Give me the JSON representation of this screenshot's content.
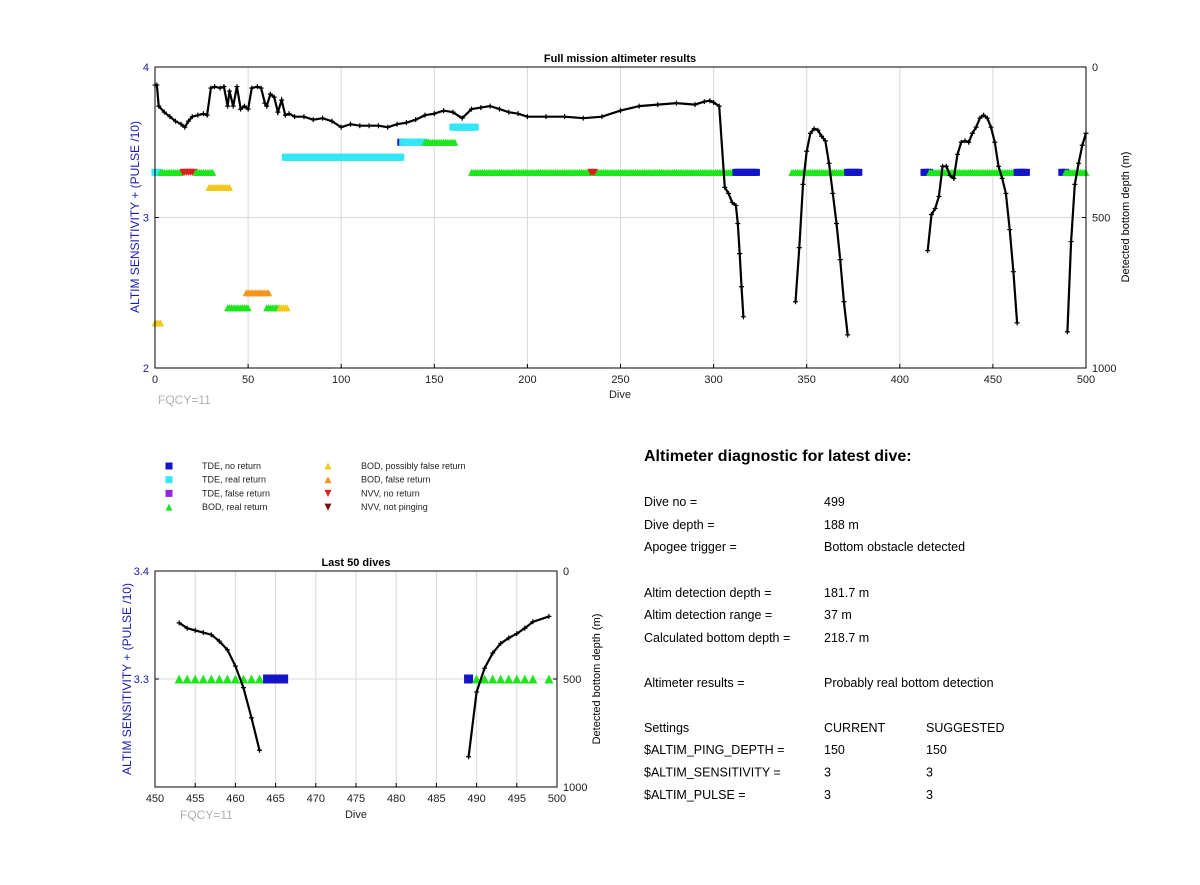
{
  "chart_data": [
    {
      "type": "scatter",
      "title": "Full mission altimeter results",
      "xlabel": "Dive",
      "ylabel": "ALTIM SENSITIVITY + (PULSE /10)",
      "y2label": "Detected bottom depth (m)",
      "xlim": [
        0,
        500
      ],
      "ylim": [
        2,
        4
      ],
      "y2lim": [
        1000,
        0
      ],
      "xticks": [
        0,
        50,
        100,
        150,
        200,
        250,
        300,
        350,
        400,
        450,
        500
      ],
      "yticks": [
        2,
        3,
        4
      ],
      "y2ticks": [
        0,
        500,
        1000
      ],
      "grid": true,
      "annotation": "FQCY=11",
      "markers": [
        {
          "category": "TDE, real return",
          "dive_start": 0,
          "dive_end": 2,
          "y": 3.3
        },
        {
          "category": "BOD, real return",
          "dive_start": 3,
          "dive_end": 14,
          "y": 3.3
        },
        {
          "category": "NVV, no return",
          "dive_start": 15,
          "dive_end": 21,
          "y": 3.3
        },
        {
          "category": "BOD, real return",
          "dive_start": 22,
          "dive_end": 31,
          "y": 3.3
        },
        {
          "category": "BOD, possibly false return",
          "dive_start": 29,
          "dive_end": 40,
          "y": 3.2
        },
        {
          "category": "BOD, possibly false return",
          "dive_start": 0,
          "dive_end": 3,
          "y": 2.3
        },
        {
          "category": "BOD, false return",
          "dive_start": 49,
          "dive_end": 61,
          "y": 2.5
        },
        {
          "category": "BOD, real return",
          "dive_start": 39,
          "dive_end": 50,
          "y": 2.4
        },
        {
          "category": "BOD, real return",
          "dive_start": 60,
          "dive_end": 67,
          "y": 2.4
        },
        {
          "category": "BOD, possibly false return",
          "dive_start": 67,
          "dive_end": 71,
          "y": 2.4
        },
        {
          "category": "TDE, real return",
          "dive_start": 70,
          "dive_end": 132,
          "y": 3.4
        },
        {
          "category": "TDE, no return",
          "dive_start": 132,
          "dive_end": 133,
          "y": 3.5
        },
        {
          "category": "TDE, real return",
          "dive_start": 133,
          "dive_end": 145,
          "y": 3.5
        },
        {
          "category": "BOD, real return",
          "dive_start": 145,
          "dive_end": 161,
          "y": 3.5
        },
        {
          "category": "TDE, real return",
          "dive_start": 160,
          "dive_end": 172,
          "y": 3.6
        },
        {
          "category": "BOD, real return",
          "dive_start": 170,
          "dive_end": 312,
          "y": 3.3
        },
        {
          "category": "NVV, no return",
          "dive_start": 234,
          "dive_end": 236,
          "y": 3.3
        },
        {
          "category": "TDE, no return",
          "dive_start": 312,
          "dive_end": 323,
          "y": 3.3
        },
        {
          "category": "BOD, real return",
          "dive_start": 342,
          "dive_end": 372,
          "y": 3.3
        },
        {
          "category": "TDE, no return",
          "dive_start": 372,
          "dive_end": 378,
          "y": 3.3
        },
        {
          "category": "TDE, no return",
          "dive_start": 413,
          "dive_end": 416,
          "y": 3.3
        },
        {
          "category": "BOD, real return",
          "dive_start": 416,
          "dive_end": 463,
          "y": 3.3
        },
        {
          "category": "TDE, no return",
          "dive_start": 463,
          "dive_end": 468,
          "y": 3.3
        },
        {
          "category": "TDE, no return",
          "dive_start": 487,
          "dive_end": 489,
          "y": 3.3
        },
        {
          "category": "BOD, real return",
          "dive_start": 489,
          "dive_end": 500,
          "y": 3.3
        }
      ],
      "depth_series": [
        {
          "x": [
            0,
            1,
            2,
            5,
            8,
            11,
            14,
            16,
            18,
            20,
            23,
            26,
            28,
            30,
            32,
            35,
            37,
            39,
            40,
            42,
            44,
            46,
            48,
            50,
            52,
            55,
            57,
            59,
            60,
            62,
            64,
            66,
            68,
            70,
            72,
            75,
            80,
            85,
            90,
            95,
            100,
            105,
            110,
            115,
            120,
            125,
            130,
            135,
            140,
            145,
            150,
            155,
            160,
            165,
            170,
            175,
            180,
            185,
            190,
            195,
            200,
            210,
            220,
            230,
            240,
            250,
            260,
            270,
            280,
            290,
            295,
            298,
            300,
            303,
            306,
            308,
            310,
            312,
            313,
            314,
            315,
            316
          ],
          "y": [
            60,
            60,
            130,
            150,
            165,
            180,
            190,
            200,
            180,
            165,
            160,
            155,
            160,
            70,
            65,
            70,
            65,
            130,
            80,
            130,
            65,
            140,
            130,
            140,
            70,
            65,
            70,
            120,
            130,
            90,
            100,
            150,
            110,
            160,
            155,
            165,
            165,
            175,
            170,
            180,
            200,
            190,
            195,
            195,
            195,
            200,
            190,
            185,
            175,
            160,
            155,
            145,
            150,
            170,
            140,
            135,
            130,
            140,
            150,
            155,
            165,
            165,
            165,
            170,
            165,
            145,
            130,
            125,
            120,
            125,
            115,
            112,
            118,
            130,
            400,
            420,
            450,
            460,
            520,
            620,
            730,
            830
          ]
        },
        {
          "x": [
            344,
            346,
            348,
            350,
            352,
            354,
            356,
            358,
            360,
            362,
            364,
            366,
            368,
            370,
            372
          ],
          "y": [
            780,
            600,
            390,
            280,
            220,
            205,
            210,
            230,
            245,
            320,
            420,
            520,
            640,
            780,
            890
          ]
        },
        {
          "x": [
            415,
            417,
            419,
            421,
            423,
            425,
            427,
            429,
            431,
            433,
            435,
            437,
            439,
            441,
            443,
            445,
            447,
            449,
            451,
            453,
            455,
            457,
            459,
            461,
            463
          ],
          "y": [
            610,
            490,
            470,
            430,
            330,
            330,
            360,
            370,
            290,
            250,
            245,
            250,
            220,
            200,
            170,
            160,
            170,
            200,
            250,
            330,
            370,
            420,
            540,
            680,
            850
          ]
        },
        {
          "x": [
            490,
            492,
            494,
            496,
            498,
            500
          ],
          "y": [
            880,
            580,
            390,
            320,
            260,
            220
          ]
        }
      ]
    },
    {
      "type": "scatter",
      "title": "Last 50 dives",
      "xlabel": "Dive",
      "ylabel": "ALTIM SENSITIVITY + (PULSE /10)",
      "y2label": "Detected bottom depth (m)",
      "xlim": [
        450,
        500
      ],
      "ylim": [
        3.2,
        3.4
      ],
      "y2lim": [
        1000,
        0
      ],
      "xticks": [
        450,
        455,
        460,
        465,
        470,
        475,
        480,
        485,
        490,
        495,
        500
      ],
      "yticks": [
        3.3,
        3.4
      ],
      "y2ticks": [
        0,
        500,
        1000
      ],
      "grid": true,
      "annotation": "FQCY=11",
      "markers": [
        {
          "category": "BOD, real return",
          "dives": [
            453,
            454,
            455,
            456,
            457,
            458,
            459,
            460,
            461,
            462,
            463
          ],
          "y": 3.3
        },
        {
          "category": "TDE, no return",
          "dives": [
            464,
            465,
            466
          ],
          "y": 3.3
        },
        {
          "category": "TDE, no return",
          "dives": [
            489
          ],
          "y": 3.3
        },
        {
          "category": "BOD, real return",
          "dives": [
            490,
            491,
            492,
            493,
            494,
            495,
            496,
            497,
            499
          ],
          "y": 3.3
        }
      ],
      "depth_series": [
        {
          "x": [
            453,
            454,
            455,
            456,
            457,
            458,
            459,
            460,
            461,
            462,
            463
          ],
          "y": [
            240,
            265,
            275,
            285,
            295,
            325,
            365,
            440,
            540,
            680,
            830
          ]
        },
        {
          "x": [
            489,
            490,
            491,
            492,
            493,
            494,
            495,
            496,
            497,
            499
          ],
          "y": [
            860,
            560,
            450,
            380,
            335,
            310,
            290,
            265,
            235,
            210
          ]
        }
      ]
    }
  ],
  "top_chart": {
    "title": "Full mission altimeter results",
    "xlabel": "Dive",
    "ylabel": "ALTIM SENSITIVITY + (PULSE /10)",
    "y2label": "Detected bottom depth (m)",
    "fqcy": "FQCY=11"
  },
  "bottom_chart": {
    "title": "Last 50 dives",
    "xlabel": "Dive",
    "ylabel": "ALTIM SENSITIVITY + (PULSE /10)",
    "y2label": "Detected bottom depth (m)",
    "fqcy": "FQCY=11"
  },
  "legend": {
    "col1": [
      {
        "label": "TDE, no return",
        "shape": "square",
        "color": "#1515c8"
      },
      {
        "label": "TDE, real return",
        "shape": "square",
        "color": "#33e6f5"
      },
      {
        "label": "TDE, false return",
        "shape": "square",
        "color": "#8e2be0"
      },
      {
        "label": "BOD, real return",
        "shape": "triangle-up",
        "color": "#1ee61e"
      }
    ],
    "col2": [
      {
        "label": "BOD, possibly false return",
        "shape": "triangle-up",
        "color": "#f2c81a"
      },
      {
        "label": "BOD, false return",
        "shape": "triangle-up",
        "color": "#f2961a"
      },
      {
        "label": "NVV, no return",
        "shape": "triangle-down",
        "color": "#e01e1e"
      },
      {
        "label": "NVV, not pinging",
        "shape": "triangle-down",
        "color": "#7a1010"
      }
    ]
  },
  "diagnostic": {
    "title": "Altimeter diagnostic for latest dive:",
    "rows": [
      {
        "label": "Dive no =",
        "value": "499"
      },
      {
        "label": "Dive depth =",
        "value": "188 m"
      },
      {
        "label": "Apogee trigger =",
        "value": "Bottom obstacle detected"
      },
      {
        "label": "Altim detection depth =",
        "value": "181.7 m"
      },
      {
        "label": "Altim detection range =",
        "value": "37 m"
      },
      {
        "label": "Calculated bottom depth =",
        "value": "218.7 m"
      },
      {
        "label": "Altimeter results =",
        "value": "Probably real bottom detection"
      }
    ],
    "settings_header": {
      "label": "Settings",
      "current": "CURRENT",
      "suggested": "SUGGESTED"
    },
    "settings": [
      {
        "label": "$ALTIM_PING_DEPTH =",
        "current": "150",
        "suggested": "150"
      },
      {
        "label": "$ALTIM_SENSITIVITY =",
        "current": "3",
        "suggested": "3"
      },
      {
        "label": "$ALTIM_PULSE =",
        "current": "3",
        "suggested": "3"
      }
    ]
  },
  "colors": {
    "axis_left": "#1a1ab0",
    "depth_line": "#000000",
    "grid": "#d8d8d8"
  }
}
